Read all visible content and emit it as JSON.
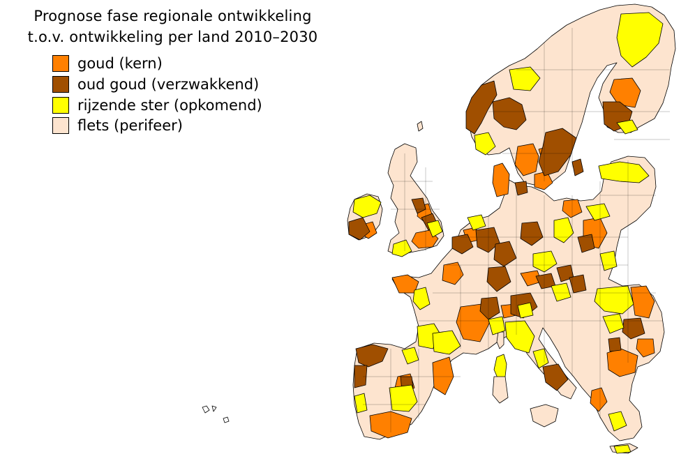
{
  "title": {
    "line1": "Prognose fase regionale ontwikkeling",
    "line2": "t.o.v. ontwikkeling per land 2010–2030"
  },
  "legend": [
    {
      "key": "goud",
      "label": "goud (kern)",
      "color": "#ff8000"
    },
    {
      "key": "oud",
      "label": "oud goud (verzwakkend)",
      "color": "#a04f00"
    },
    {
      "key": "rijzend",
      "label": "rijzende ster (opkomend)",
      "color": "#ffff00"
    },
    {
      "key": "flets",
      "label": "flets (perifeer)",
      "color": "#fde4cf"
    }
  ]
}
